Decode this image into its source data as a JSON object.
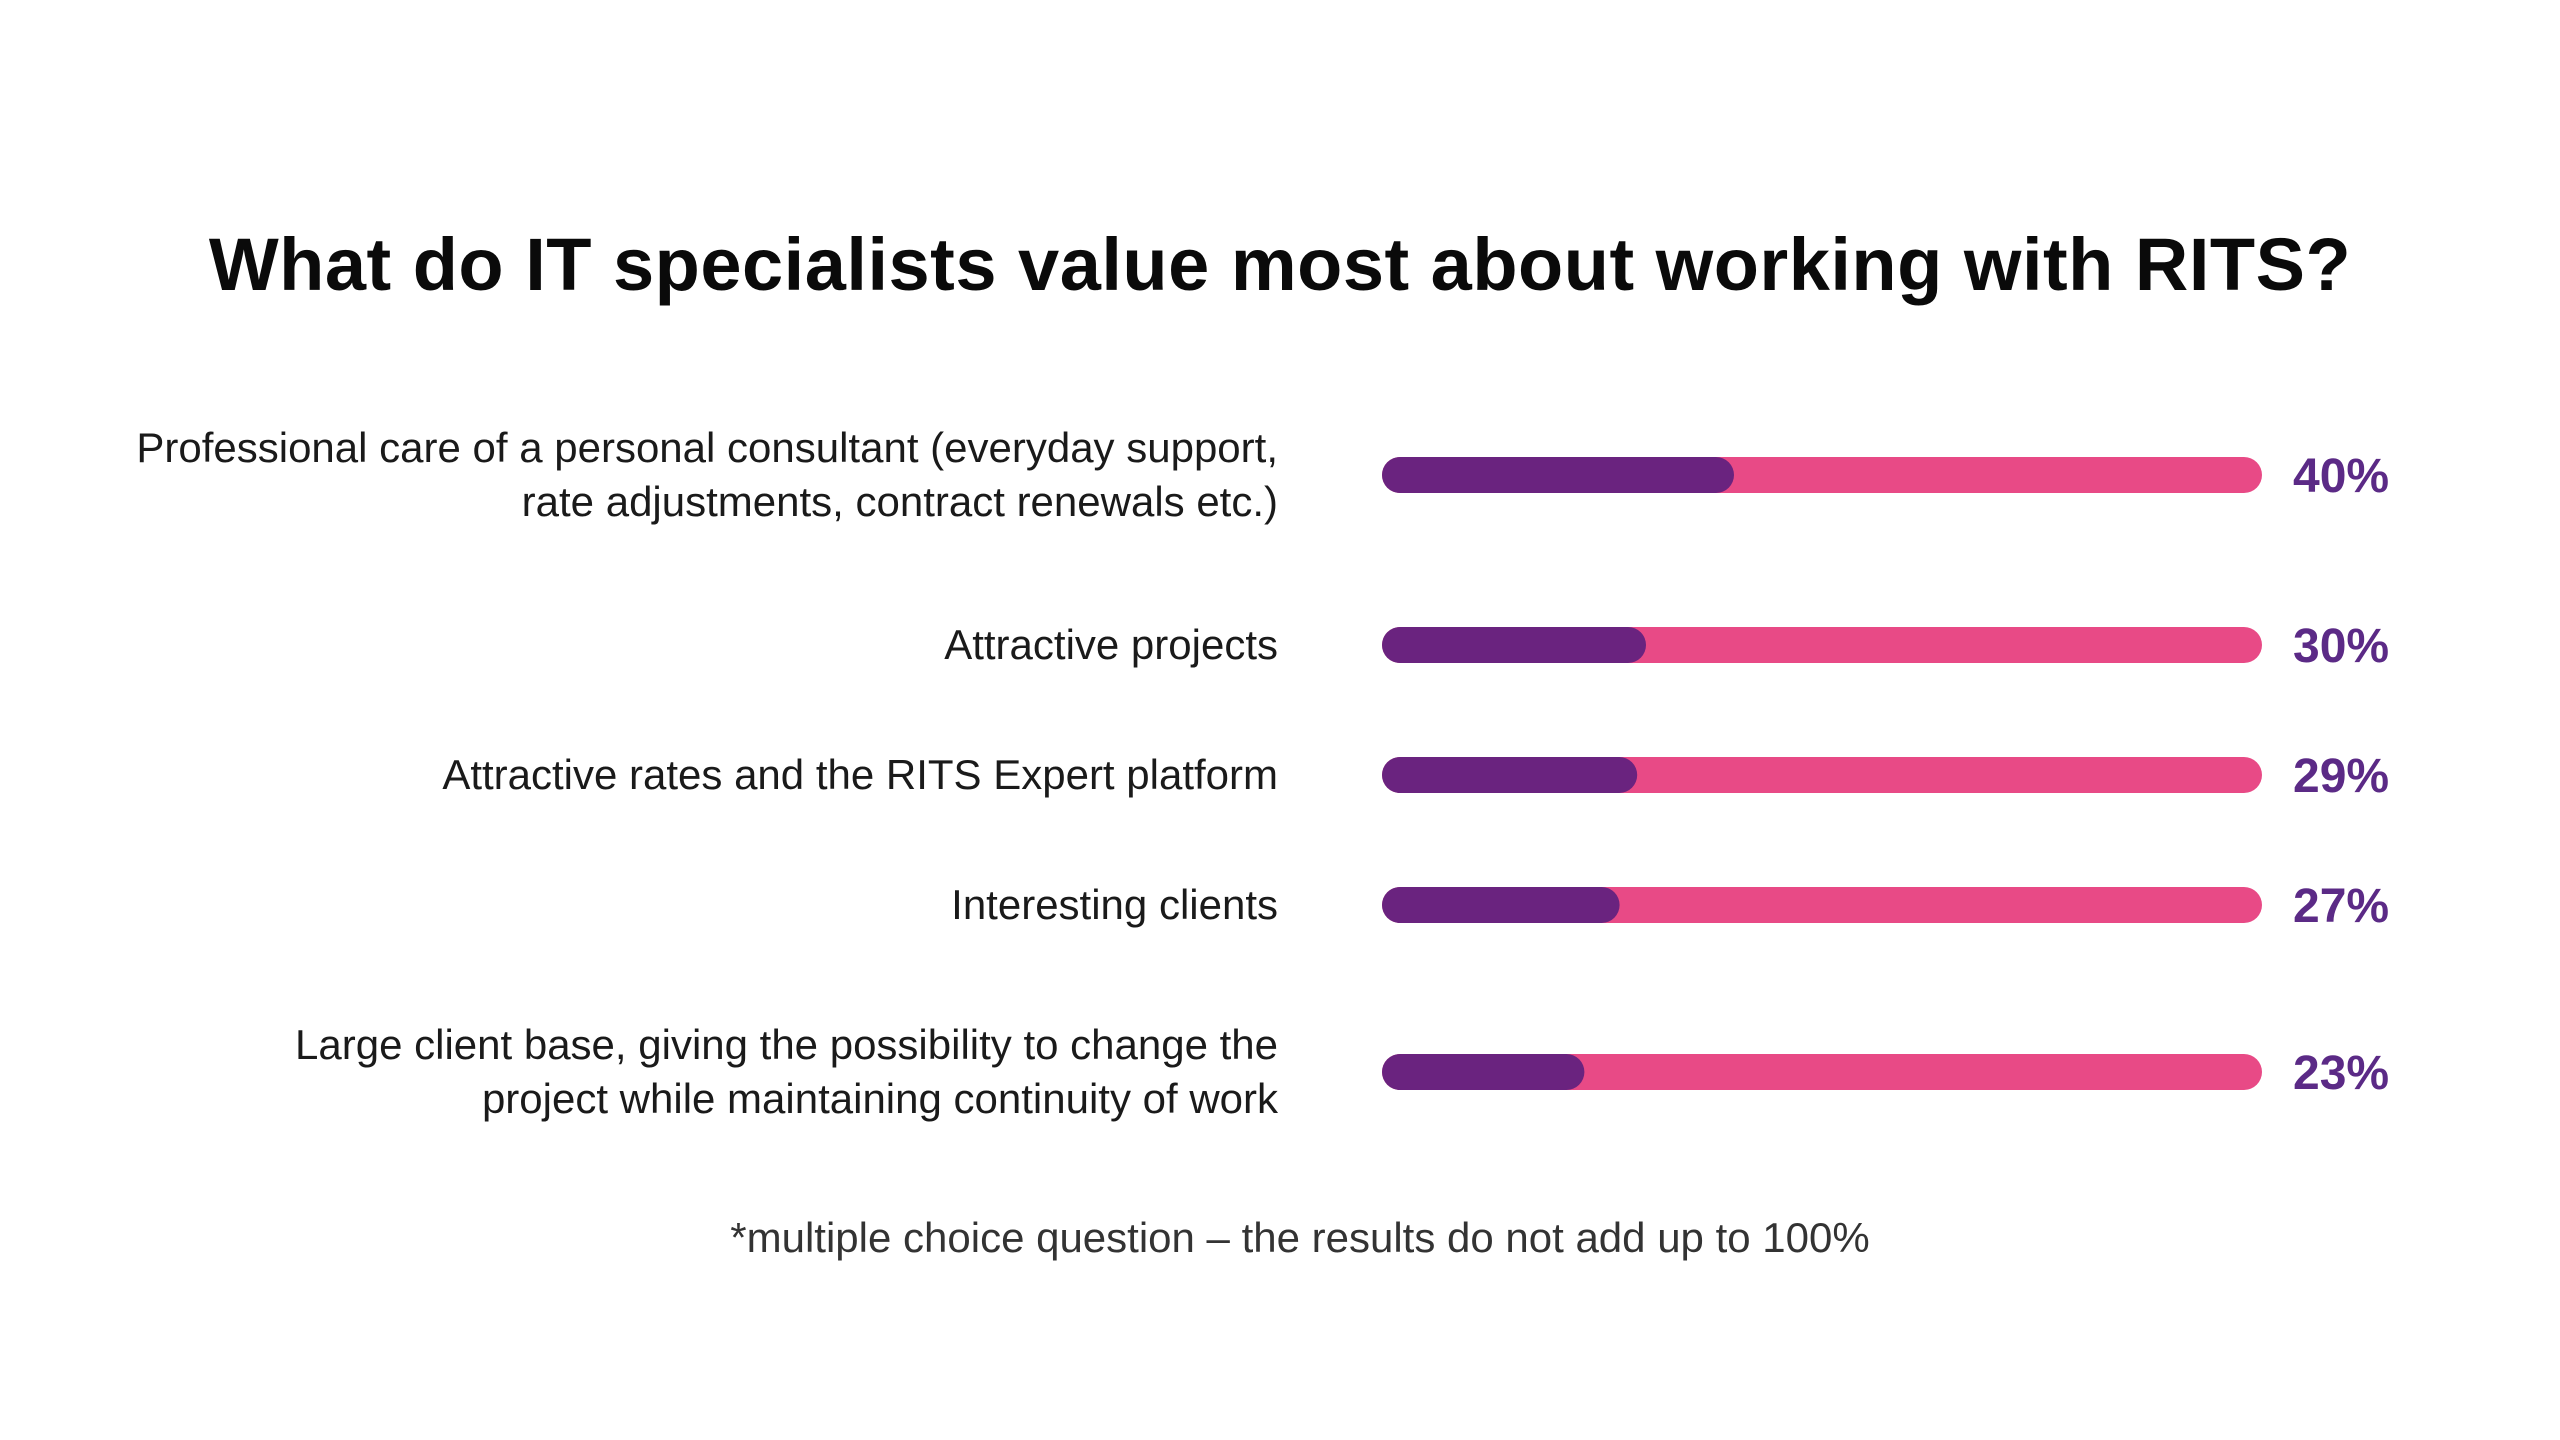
{
  "colors": {
    "background": "#ffffff",
    "filled": "#6a237f",
    "track": "#e84a86",
    "value_text": "#5b2a86",
    "title_text": "#0a0a0a"
  },
  "chart_data": {
    "type": "bar",
    "orientation": "horizontal",
    "title": "What do IT specialists value most about working with RITS?",
    "categories": [
      [
        "Professional care of a personal consultant (everyday support,",
        "rate adjustments, contract renewals etc.)"
      ],
      [
        "Attractive projects"
      ],
      [
        "Attractive rates and the RITS Expert platform"
      ],
      [
        "Interesting clients"
      ],
      [
        "Large client base, giving the possibility to change the",
        "project while maintaining continuity of work"
      ]
    ],
    "values": [
      40,
      30,
      29,
      27,
      23
    ],
    "value_labels": [
      "40%",
      "30%",
      "29%",
      "27%",
      "23%"
    ],
    "unit": "%",
    "xlim": [
      0,
      100
    ],
    "grid": false,
    "legend": "none",
    "footnote": "*multiple choice question – the results do not add up to 100%"
  }
}
